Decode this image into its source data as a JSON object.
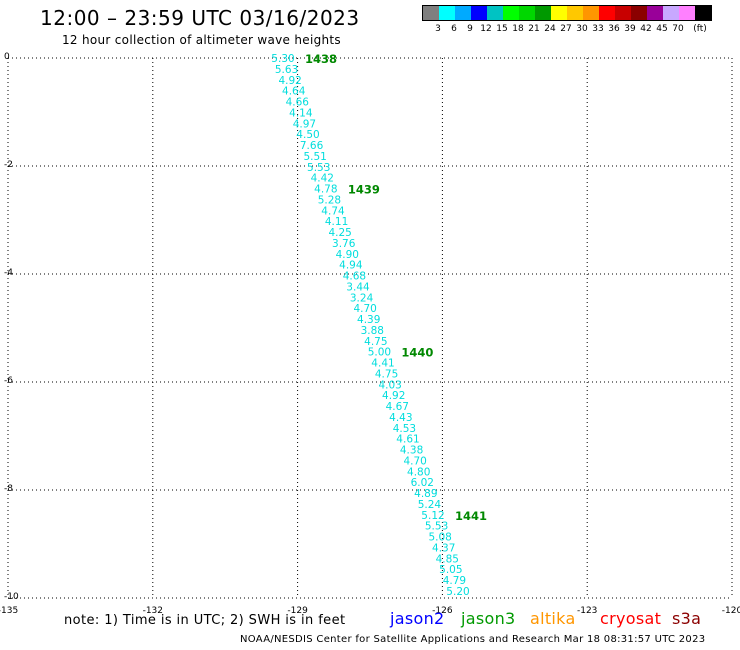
{
  "title": "12:00 – 23:59 UTC 03/16/2023",
  "subtitle": "12 hour collection of altimeter wave heights",
  "legend": {
    "colors": [
      "#7f7f7f",
      "#00ffff",
      "#00aaff",
      "#0000ff",
      "#00c3c3",
      "#00ff00",
      "#00d700",
      "#009900",
      "#ffff00",
      "#ffc800",
      "#ff9600",
      "#ff0000",
      "#c80000",
      "#8b0000",
      "#990099",
      "#c8a8ff",
      "#ff80ff",
      "#000000"
    ],
    "labels": [
      "3",
      "6",
      "9",
      "12",
      "15",
      "18",
      "21",
      "24",
      "27",
      "30",
      "33",
      "36",
      "39",
      "42",
      "45",
      "70",
      "(ft)"
    ]
  },
  "map": {
    "lon_ticks": [
      "-135",
      "-132",
      "-129",
      "-126",
      "-123",
      "-120"
    ],
    "lat_ticks": [
      "0",
      "-2",
      "-4",
      "-6",
      "-8",
      "-10"
    ],
    "lon_range": [
      -135,
      -120
    ],
    "lat_range": [
      -10,
      0
    ],
    "track_color": "#00dddd",
    "time_color": "#008800",
    "swh": [
      "5.30",
      "5.63",
      "4.92",
      "4.64",
      "4.66",
      "4.14",
      "4.97",
      "4.50",
      "7.66",
      "5.51",
      "5.53",
      "4.42",
      "4.78",
      "5.28",
      "4.74",
      "4.11",
      "4.25",
      "3.76",
      "4.90",
      "4.94",
      "4.68",
      "3.44",
      "3.24",
      "4.70",
      "4.39",
      "3.88",
      "4.75",
      "5.00",
      "4.41",
      "4.75",
      "4.03",
      "4.92",
      "4.67",
      "4.43",
      "4.53",
      "4.61",
      "4.38",
      "4.70",
      "4.80",
      "6.02",
      "4.89",
      "5.24",
      "5.12",
      "5.53",
      "5.08",
      "4.37",
      "4.85",
      "5.05",
      "4.79",
      "5.20"
    ],
    "times": [
      {
        "label": "1438",
        "index": 0
      },
      {
        "label": "1439",
        "index": 12
      },
      {
        "label": "1440",
        "index": 27
      },
      {
        "label": "1441",
        "index": 42
      }
    ]
  },
  "note": "note: 1) Time is in UTC; 2) SWH is in feet",
  "satellites": [
    {
      "name": "jason2",
      "color": "#0000ff"
    },
    {
      "name": "jason3",
      "color": "#009900"
    },
    {
      "name": "altika",
      "color": "#ff9600"
    },
    {
      "name": "cryosat",
      "color": "#ff0000"
    },
    {
      "name": "s3a",
      "color": "#8b0000"
    }
  ],
  "footer": "NOAA/NESDIS Center for Satellite Applications and Research   Mar 18 08:31:57 UTC 2023"
}
